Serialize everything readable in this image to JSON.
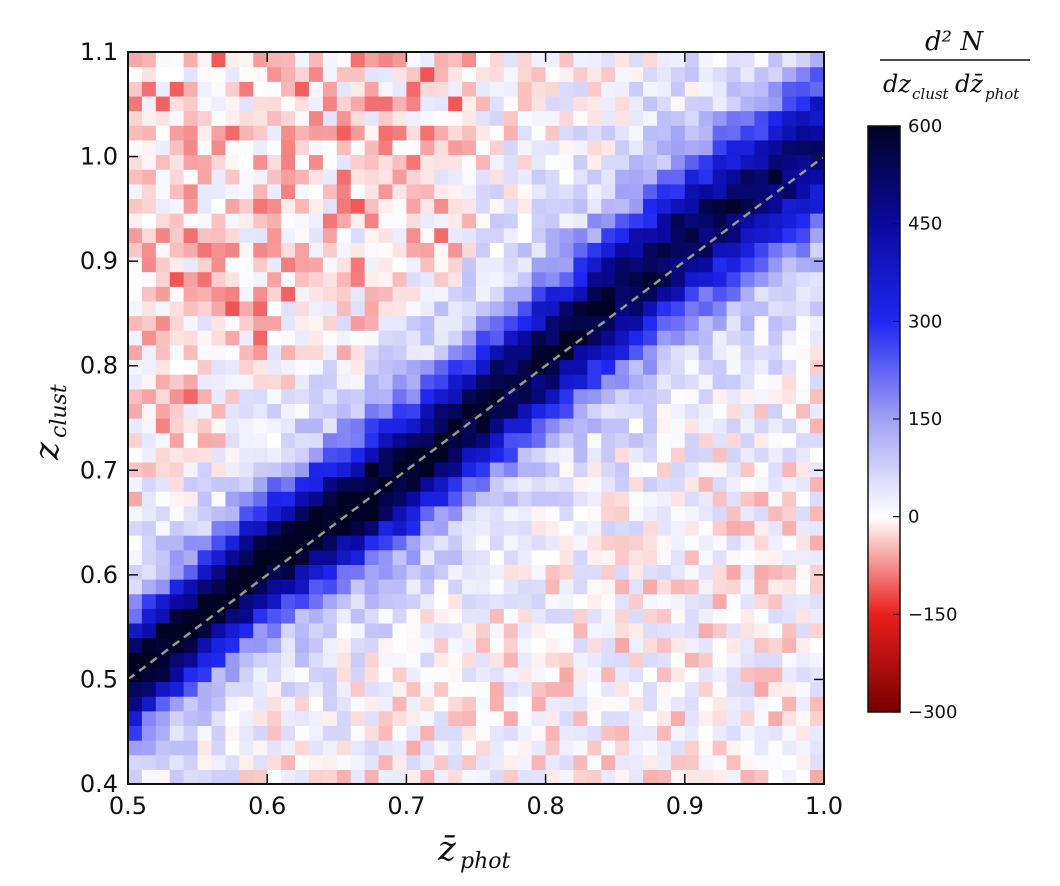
{
  "chart_data": {
    "type": "heatmap",
    "title": "",
    "xlabel": {
      "main": "z̄",
      "sub": "phot"
    },
    "ylabel": {
      "main": "z",
      "sub": "clust"
    },
    "xlim": [
      0.5,
      1.0
    ],
    "ylim": [
      0.4,
      1.1
    ],
    "x_ticks": [
      "0.5",
      "0.6",
      "0.7",
      "0.8",
      "0.9",
      "1.0"
    ],
    "y_ticks": [
      "0.4",
      "0.5",
      "0.6",
      "0.7",
      "0.8",
      "0.9",
      "1.0",
      "1.1"
    ],
    "bins": {
      "x_count": 50,
      "y_count": 50
    },
    "ridge": {
      "description_points": [
        [
          0.5,
          0.5
        ],
        [
          0.6,
          0.615
        ],
        [
          0.7,
          0.7
        ],
        [
          0.8,
          0.81
        ],
        [
          0.9,
          0.92
        ],
        [
          1.0,
          1.01
        ]
      ],
      "peak_value": 600
    },
    "diagonal_line": {
      "from": [
        0.5,
        0.5
      ],
      "to": [
        1.0,
        1.0
      ],
      "style": "dashed",
      "color": "#9a9a88"
    },
    "colorbar": {
      "title_num": "d² N",
      "title_den": "dz",
      "title_den_sub1": "clust",
      "title_den_mid": "dz̄",
      "title_den_sub2": "phot",
      "range": [
        -300,
        600
      ],
      "ticks": [
        "600",
        "450",
        "300",
        "150",
        "0",
        "−150",
        "−300"
      ],
      "tick_values": [
        600,
        450,
        300,
        150,
        0,
        -150,
        -300
      ],
      "colormap": "bwr (dark red → white at 0 → blue → navy)"
    },
    "grid": false
  }
}
